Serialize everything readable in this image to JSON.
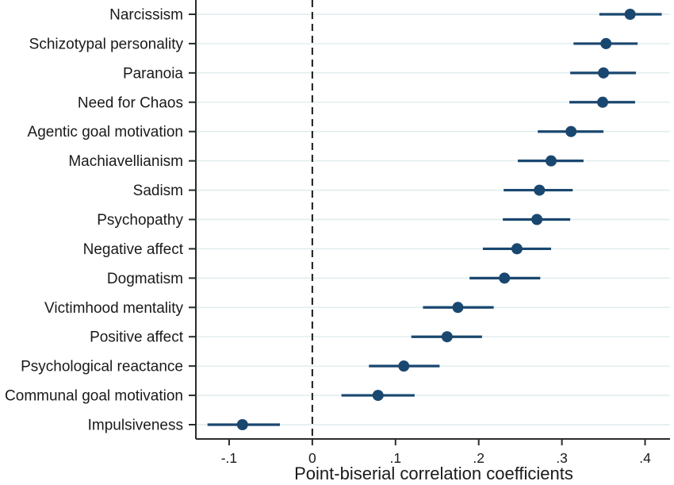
{
  "colors": {
    "marker": "#1a476f",
    "ci_line": "#1a476f",
    "gridline": "#dfecee",
    "axis_line": "#2b2b2b",
    "text": "#1a1a1a",
    "reference_line": "#1a1a1a",
    "background": "#ffffff"
  },
  "chart_data": {
    "type": "scatter",
    "variant": "forest-plot-dot-with-ci",
    "title": "",
    "xlabel": "Point-biserial correlation coefficients",
    "ylabel": "",
    "xlim": [
      -0.14,
      0.43
    ],
    "x_ticks": [
      -0.1,
      0,
      0.1,
      0.2,
      0.3,
      0.4
    ],
    "x_tick_labels": [
      "-.1",
      "0",
      ".1",
      ".2",
      ".3",
      ".4"
    ],
    "reference_line_x": 0,
    "grid": "horizontal",
    "legend": "none",
    "points": [
      {
        "label": "Narcissism",
        "value": 0.382,
        "ci_low": 0.345,
        "ci_high": 0.42
      },
      {
        "label": "Schizotypal personality",
        "value": 0.353,
        "ci_low": 0.314,
        "ci_high": 0.391
      },
      {
        "label": "Paranoia",
        "value": 0.35,
        "ci_low": 0.31,
        "ci_high": 0.389
      },
      {
        "label": "Need for Chaos",
        "value": 0.349,
        "ci_low": 0.309,
        "ci_high": 0.388
      },
      {
        "label": "Agentic goal motivation",
        "value": 0.311,
        "ci_low": 0.271,
        "ci_high": 0.35
      },
      {
        "label": "Machiavellianism",
        "value": 0.287,
        "ci_low": 0.247,
        "ci_high": 0.326
      },
      {
        "label": "Sadism",
        "value": 0.273,
        "ci_low": 0.23,
        "ci_high": 0.313
      },
      {
        "label": "Psychopathy",
        "value": 0.27,
        "ci_low": 0.229,
        "ci_high": 0.31
      },
      {
        "label": "Negative affect",
        "value": 0.246,
        "ci_low": 0.205,
        "ci_high": 0.287
      },
      {
        "label": "Dogmatism",
        "value": 0.231,
        "ci_low": 0.189,
        "ci_high": 0.274
      },
      {
        "label": "Victimhood mentality",
        "value": 0.175,
        "ci_low": 0.133,
        "ci_high": 0.218
      },
      {
        "label": "Positive affect",
        "value": 0.162,
        "ci_low": 0.119,
        "ci_high": 0.204
      },
      {
        "label": "Psychological reactance",
        "value": 0.11,
        "ci_low": 0.068,
        "ci_high": 0.153
      },
      {
        "label": "Communal goal motivation",
        "value": 0.079,
        "ci_low": 0.035,
        "ci_high": 0.123
      },
      {
        "label": "Impulsiveness",
        "value": -0.084,
        "ci_low": -0.126,
        "ci_high": -0.039
      }
    ]
  }
}
